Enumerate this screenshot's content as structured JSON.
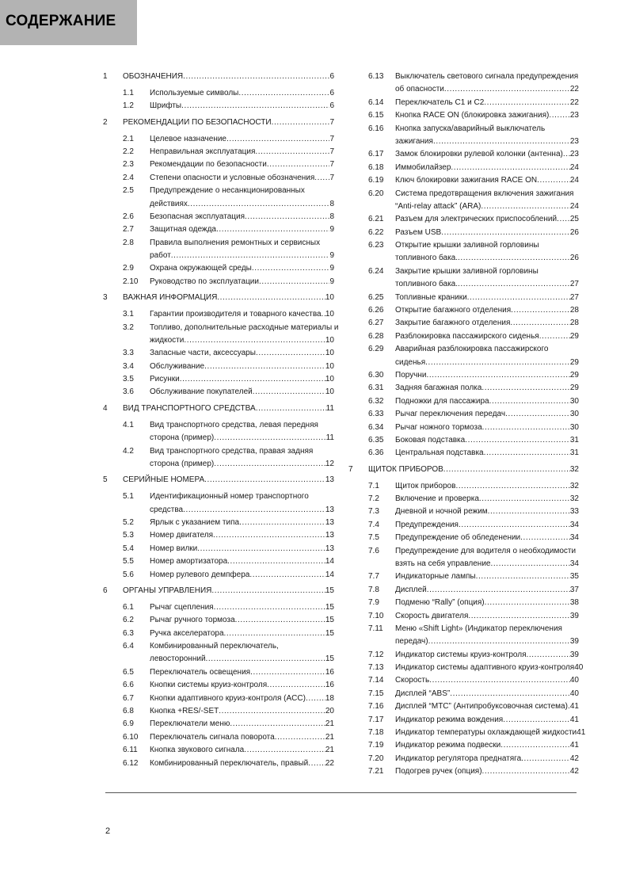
{
  "header": {
    "title": "СОДЕРЖАНИЕ",
    "background": "#b3b3b3"
  },
  "toc_left": [
    {
      "level": 1,
      "num": "1",
      "label": "ОБОЗНАЧЕНИЯ",
      "page": "6"
    },
    {
      "level": 2,
      "num": "1.1",
      "label": "Используемые символы",
      "page": "6"
    },
    {
      "level": 2,
      "num": "1.2",
      "label": "Шрифты",
      "page": "6"
    },
    {
      "level": 1,
      "num": "2",
      "label": "РЕКОМЕНДАЦИИ ПО БЕЗОПАСНОСТИ",
      "page": "7"
    },
    {
      "level": 2,
      "num": "2.1",
      "label": "Целевое назначение",
      "page": "7"
    },
    {
      "level": 2,
      "num": "2.2",
      "label": "Неправильная эксплуатация",
      "page": "7"
    },
    {
      "level": 2,
      "num": "2.3",
      "label": "Рекомендации по безопасности",
      "page": "7"
    },
    {
      "level": 2,
      "num": "2.4",
      "label": "Степени опасности и условные обозначения",
      "page": "7"
    },
    {
      "level": 2,
      "num": "2.5",
      "label": "Предупреждение о несанкционированных",
      "cont": "действиях",
      "page": "8"
    },
    {
      "level": 2,
      "num": "2.6",
      "label": "Безопасная эксплуатация",
      "page": "8"
    },
    {
      "level": 2,
      "num": "2.7",
      "label": "Защитная одежда",
      "page": "9"
    },
    {
      "level": 2,
      "num": "2.8",
      "label": "Правила выполнения ремонтных и сервисных",
      "cont": "работ",
      "page": "9"
    },
    {
      "level": 2,
      "num": "2.9",
      "label": "Охрана окружающей среды",
      "page": "9"
    },
    {
      "level": 2,
      "num": "2.10",
      "label": "Руководство по эксплуатации",
      "page": "9"
    },
    {
      "level": 1,
      "num": "3",
      "label": "ВАЖНАЯ ИНФОРМАЦИЯ",
      "page": "10"
    },
    {
      "level": 2,
      "num": "3.1",
      "label": "Гарантии производителя и товарного качества",
      "page": "10"
    },
    {
      "level": 2,
      "num": "3.2",
      "label": "Топливо, дополнительные расходные материалы и",
      "cont": "жидкости",
      "page": "10"
    },
    {
      "level": 2,
      "num": "3.3",
      "label": "Запасные части, аксессуары",
      "page": "10"
    },
    {
      "level": 2,
      "num": "3.4",
      "label": "Обслуживание",
      "page": "10"
    },
    {
      "level": 2,
      "num": "3.5",
      "label": "Рисунки",
      "page": "10"
    },
    {
      "level": 2,
      "num": "3.6",
      "label": "Обслуживание покупателей",
      "page": "10"
    },
    {
      "level": 1,
      "num": "4",
      "label": "ВИД ТРАНСПОРТНОГО СРЕДСТВА",
      "page": "11"
    },
    {
      "level": 2,
      "num": "4.1",
      "label": "Вид транспортного средства, левая передняя",
      "cont": "сторона (пример)",
      "page": "11"
    },
    {
      "level": 2,
      "num": "4.2",
      "label": "Вид транспортного средства, правая задняя",
      "cont": "сторона (пример)",
      "page": "12"
    },
    {
      "level": 1,
      "num": "5",
      "label": "СЕРИЙНЫЕ НОМЕРА",
      "page": "13"
    },
    {
      "level": 2,
      "num": "5.1",
      "label": "Идентификационный номер транспортного",
      "cont": "средства",
      "page": "13"
    },
    {
      "level": 2,
      "num": "5.2",
      "label": "Ярлык с указанием типа",
      "page": "13"
    },
    {
      "level": 2,
      "num": "5.3",
      "label": "Номер двигателя",
      "page": "13"
    },
    {
      "level": 2,
      "num": "5.4",
      "label": "Номер вилки",
      "page": "13"
    },
    {
      "level": 2,
      "num": "5.5",
      "label": "Номер амортизатора",
      "page": "14"
    },
    {
      "level": 2,
      "num": "5.6",
      "label": "Номер рулевого демпфера",
      "page": "14"
    },
    {
      "level": 1,
      "num": "6",
      "label": "ОРГАНЫ УПРАВЛЕНИЯ",
      "page": "15"
    },
    {
      "level": 2,
      "num": "6.1",
      "label": "Рычаг сцепления",
      "page": "15"
    },
    {
      "level": 2,
      "num": "6.2",
      "label": "Рычаг ручного тормоза",
      "page": "15"
    },
    {
      "level": 2,
      "num": "6.3",
      "label": "Ручка акселератора",
      "page": "15"
    },
    {
      "level": 2,
      "num": "6.4",
      "label": "Комбинированный переключатель,",
      "cont": "левосторонний",
      "page": "15"
    },
    {
      "level": 2,
      "num": "6.5",
      "label": "Переключатель освещения",
      "page": "16"
    },
    {
      "level": 2,
      "num": "6.6",
      "label": "Кнопки системы круиз-контроля",
      "page": "16"
    },
    {
      "level": 2,
      "num": "6.7",
      "label": "Кнопки адаптивного круиз-контроля (ACC)",
      "page": "18"
    },
    {
      "level": 2,
      "num": "6.8",
      "label": "Кнопка +RES/-SET",
      "page": "20"
    },
    {
      "level": 2,
      "num": "6.9",
      "label": "Переключатели меню",
      "page": "21"
    },
    {
      "level": 2,
      "num": "6.10",
      "label": "Переключатель сигнала поворота",
      "page": "21"
    },
    {
      "level": 2,
      "num": "6.11",
      "label": "Кнопка звукового сигнала",
      "page": "21"
    },
    {
      "level": 2,
      "num": "6.12",
      "label": "Комбинированный переключатель, правый",
      "page": "22"
    }
  ],
  "toc_right": [
    {
      "level": 2,
      "num": "6.13",
      "label": "Выключатель светового сигнала предупреждения",
      "cont": "об опасности",
      "page": "22"
    },
    {
      "level": 2,
      "num": "6.14",
      "label": "Переключатель C1 и C2",
      "page": "22"
    },
    {
      "level": 2,
      "num": "6.15",
      "label": "Кнопка RACE ON (блокировка зажигания)",
      "page": "23"
    },
    {
      "level": 2,
      "num": "6.16",
      "label": "Кнопка запуска/аварийный выключатель",
      "cont": "зажигания",
      "page": "23"
    },
    {
      "level": 2,
      "num": "6.17",
      "label": "Замок блокировки рулевой колонки (антенна)",
      "page": "23"
    },
    {
      "level": 2,
      "num": "6.18",
      "label": "Иммобилайзер",
      "page": "24"
    },
    {
      "level": 2,
      "num": "6.19",
      "label": "Ключ блокировки зажигания RACE ON",
      "page": "24"
    },
    {
      "level": 2,
      "num": "6.20",
      "label": "Система предотвращения включения зажигания",
      "cont": "“Anti-relay attack” (ARA)",
      "page": "24"
    },
    {
      "level": 2,
      "num": "6.21",
      "label": " Разъем для электрических приспособлений",
      "page": "25"
    },
    {
      "level": 2,
      "num": "6.22",
      "label": "Разъем USB",
      "page": "26"
    },
    {
      "level": 2,
      "num": "6.23",
      "label": "Открытие крышки заливной горловины",
      "cont": "топливного бака.",
      "page": "26"
    },
    {
      "level": 2,
      "num": "6.24",
      "label": "Закрытие крышки заливной горловины",
      "cont": "топливного бака.",
      "page": "27"
    },
    {
      "level": 2,
      "num": "6.25",
      "label": "Топливные краники",
      "page": "27"
    },
    {
      "level": 2,
      "num": "6.26",
      "label": "Открытие багажного отделения",
      "page": "28"
    },
    {
      "level": 2,
      "num": "6.27",
      "label": "Закрытие багажного отделения",
      "page": "28"
    },
    {
      "level": 2,
      "num": "6.28",
      "label": "Разблокировка пассажирского сиденья",
      "page": "29"
    },
    {
      "level": 2,
      "num": "6.29",
      "label": "Аварийная разблокировка пассажирского",
      "cont": "сиденья",
      "page": "29"
    },
    {
      "level": 2,
      "num": "6.30",
      "label": "Поручни",
      "page": "29"
    },
    {
      "level": 2,
      "num": "6.31",
      "label": "Задняя багажная полка",
      "page": "29"
    },
    {
      "level": 2,
      "num": "6.32",
      "label": "Подножки для пассажира",
      "page": "30"
    },
    {
      "level": 2,
      "num": "6.33",
      "label": "Рычаг переключения передач",
      "page": "30"
    },
    {
      "level": 2,
      "num": "6.34",
      "label": "Рычаг ножного тормоза",
      "page": "30"
    },
    {
      "level": 2,
      "num": "6.35",
      "label": "Боковая подставка",
      "page": "31"
    },
    {
      "level": 2,
      "num": "6.36",
      "label": "Центральная подставка",
      "page": "31"
    },
    {
      "level": 1,
      "num": "7",
      "label": "ЩИТОК ПРИБОРОВ",
      "page": "32"
    },
    {
      "level": 2,
      "num": "7.1",
      "label": "Щиток приборов",
      "page": "32"
    },
    {
      "level": 2,
      "num": "7.2",
      "label": "Включение и проверка",
      "page": "32"
    },
    {
      "level": 2,
      "num": "7.3",
      "label": "Дневной и ночной режим",
      "page": "33"
    },
    {
      "level": 2,
      "num": "7.4",
      "label": "Предупреждения",
      "page": "34"
    },
    {
      "level": 2,
      "num": "7.5",
      "label": "Предупреждение об обледенении",
      "page": "34"
    },
    {
      "level": 2,
      "num": "7.6",
      "label": "Предупреждение для водителя о необходимости",
      "cont": "взять на себя управление",
      "page": "34"
    },
    {
      "level": 2,
      "num": "7.7",
      "label": "Индикаторные лампы",
      "page": "35"
    },
    {
      "level": 2,
      "num": "7.8",
      "label": "Дисплей",
      "page": "37"
    },
    {
      "level": 2,
      "num": "7.9",
      "label": "Подменю “Rally” (опция)",
      "page": "38"
    },
    {
      "level": 2,
      "num": "7.10",
      "label": "Скорость двигателя",
      "page": "39"
    },
    {
      "level": 2,
      "num": "7.11",
      "label": "Меню «Shift Light» (Индикатор переключения",
      "cont": "передач)",
      "page": "39"
    },
    {
      "level": 2,
      "num": "7.12",
      "label": "Индикатор системы круиз-контроля",
      "page": "39"
    },
    {
      "level": 2,
      "num": "7.13",
      "label": "Индикатор системы адаптивного круиз-контроля",
      "page": "40",
      "nodots": true
    },
    {
      "level": 2,
      "num": "7.14",
      "label": " Скорость",
      "page": "40"
    },
    {
      "level": 2,
      "num": "7.15",
      "label": "Дисплей “ABS”",
      "page": "40"
    },
    {
      "level": 2,
      "num": "7.16",
      "label": "Дисплей “MTC” (Антипробуксовочная система)",
      "page": "41"
    },
    {
      "level": 2,
      "num": "7.17",
      "label": "Индикатор режима вождения",
      "page": "41"
    },
    {
      "level": 2,
      "num": "7.18",
      "label": "Индикатор температуры охлаждающей жидкости",
      "page": "41",
      "nodots": true
    },
    {
      "level": 2,
      "num": "7.19",
      "label": "Индикатор режима подвески",
      "page": "41"
    },
    {
      "level": 2,
      "num": "7.20",
      "label": "Индикатор регулятора преднатяга",
      "page": "42"
    },
    {
      "level": 2,
      "num": "7.21",
      "label": "Подогрев ручек (опция)",
      "page": "42"
    }
  ],
  "footer": {
    "page_number": "2"
  }
}
